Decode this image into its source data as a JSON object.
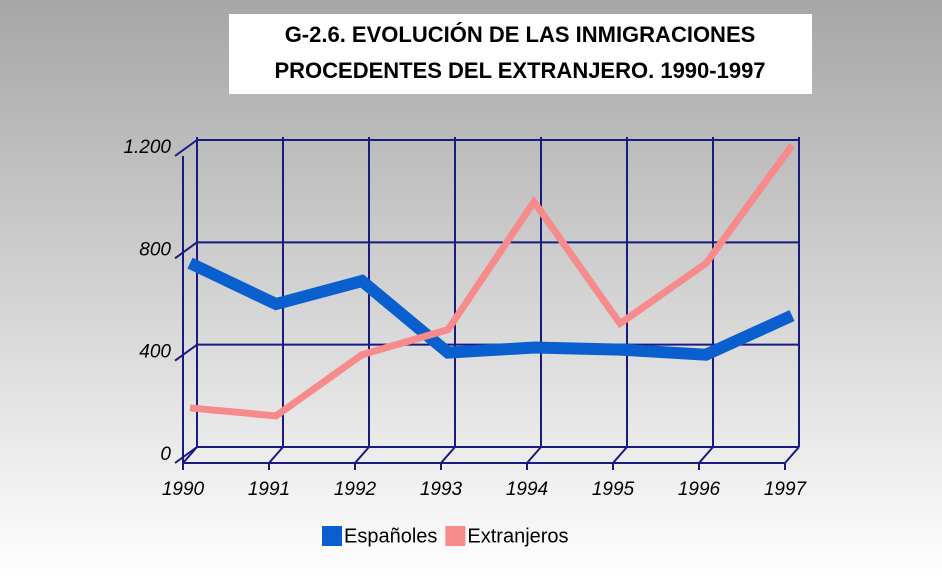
{
  "chart_data": {
    "type": "line",
    "title_lines": [
      "G-2.6.  EVOLUCIÓN DE LAS INMIGRACIONES",
      "PROCEDENTES DEL EXTRANJERO. 1990-1997"
    ],
    "categories": [
      "1990",
      "1991",
      "1992",
      "1993",
      "1994",
      "1995",
      "1996",
      "1997"
    ],
    "series": [
      {
        "name": "Españoles",
        "color": "#0a5fcf",
        "values": [
          750,
          590,
          680,
          400,
          420,
          412,
          392,
          545
        ]
      },
      {
        "name": "Extranjeros",
        "color": "#f78a8a",
        "values": [
          184,
          153,
          392,
          490,
          990,
          514,
          749,
          1210
        ]
      }
    ],
    "ylim": [
      0,
      1200
    ],
    "yticks": [
      0,
      400,
      800,
      {
        "value": 1200,
        "label": "1.200"
      }
    ],
    "grid": true,
    "legend": "bottom"
  }
}
